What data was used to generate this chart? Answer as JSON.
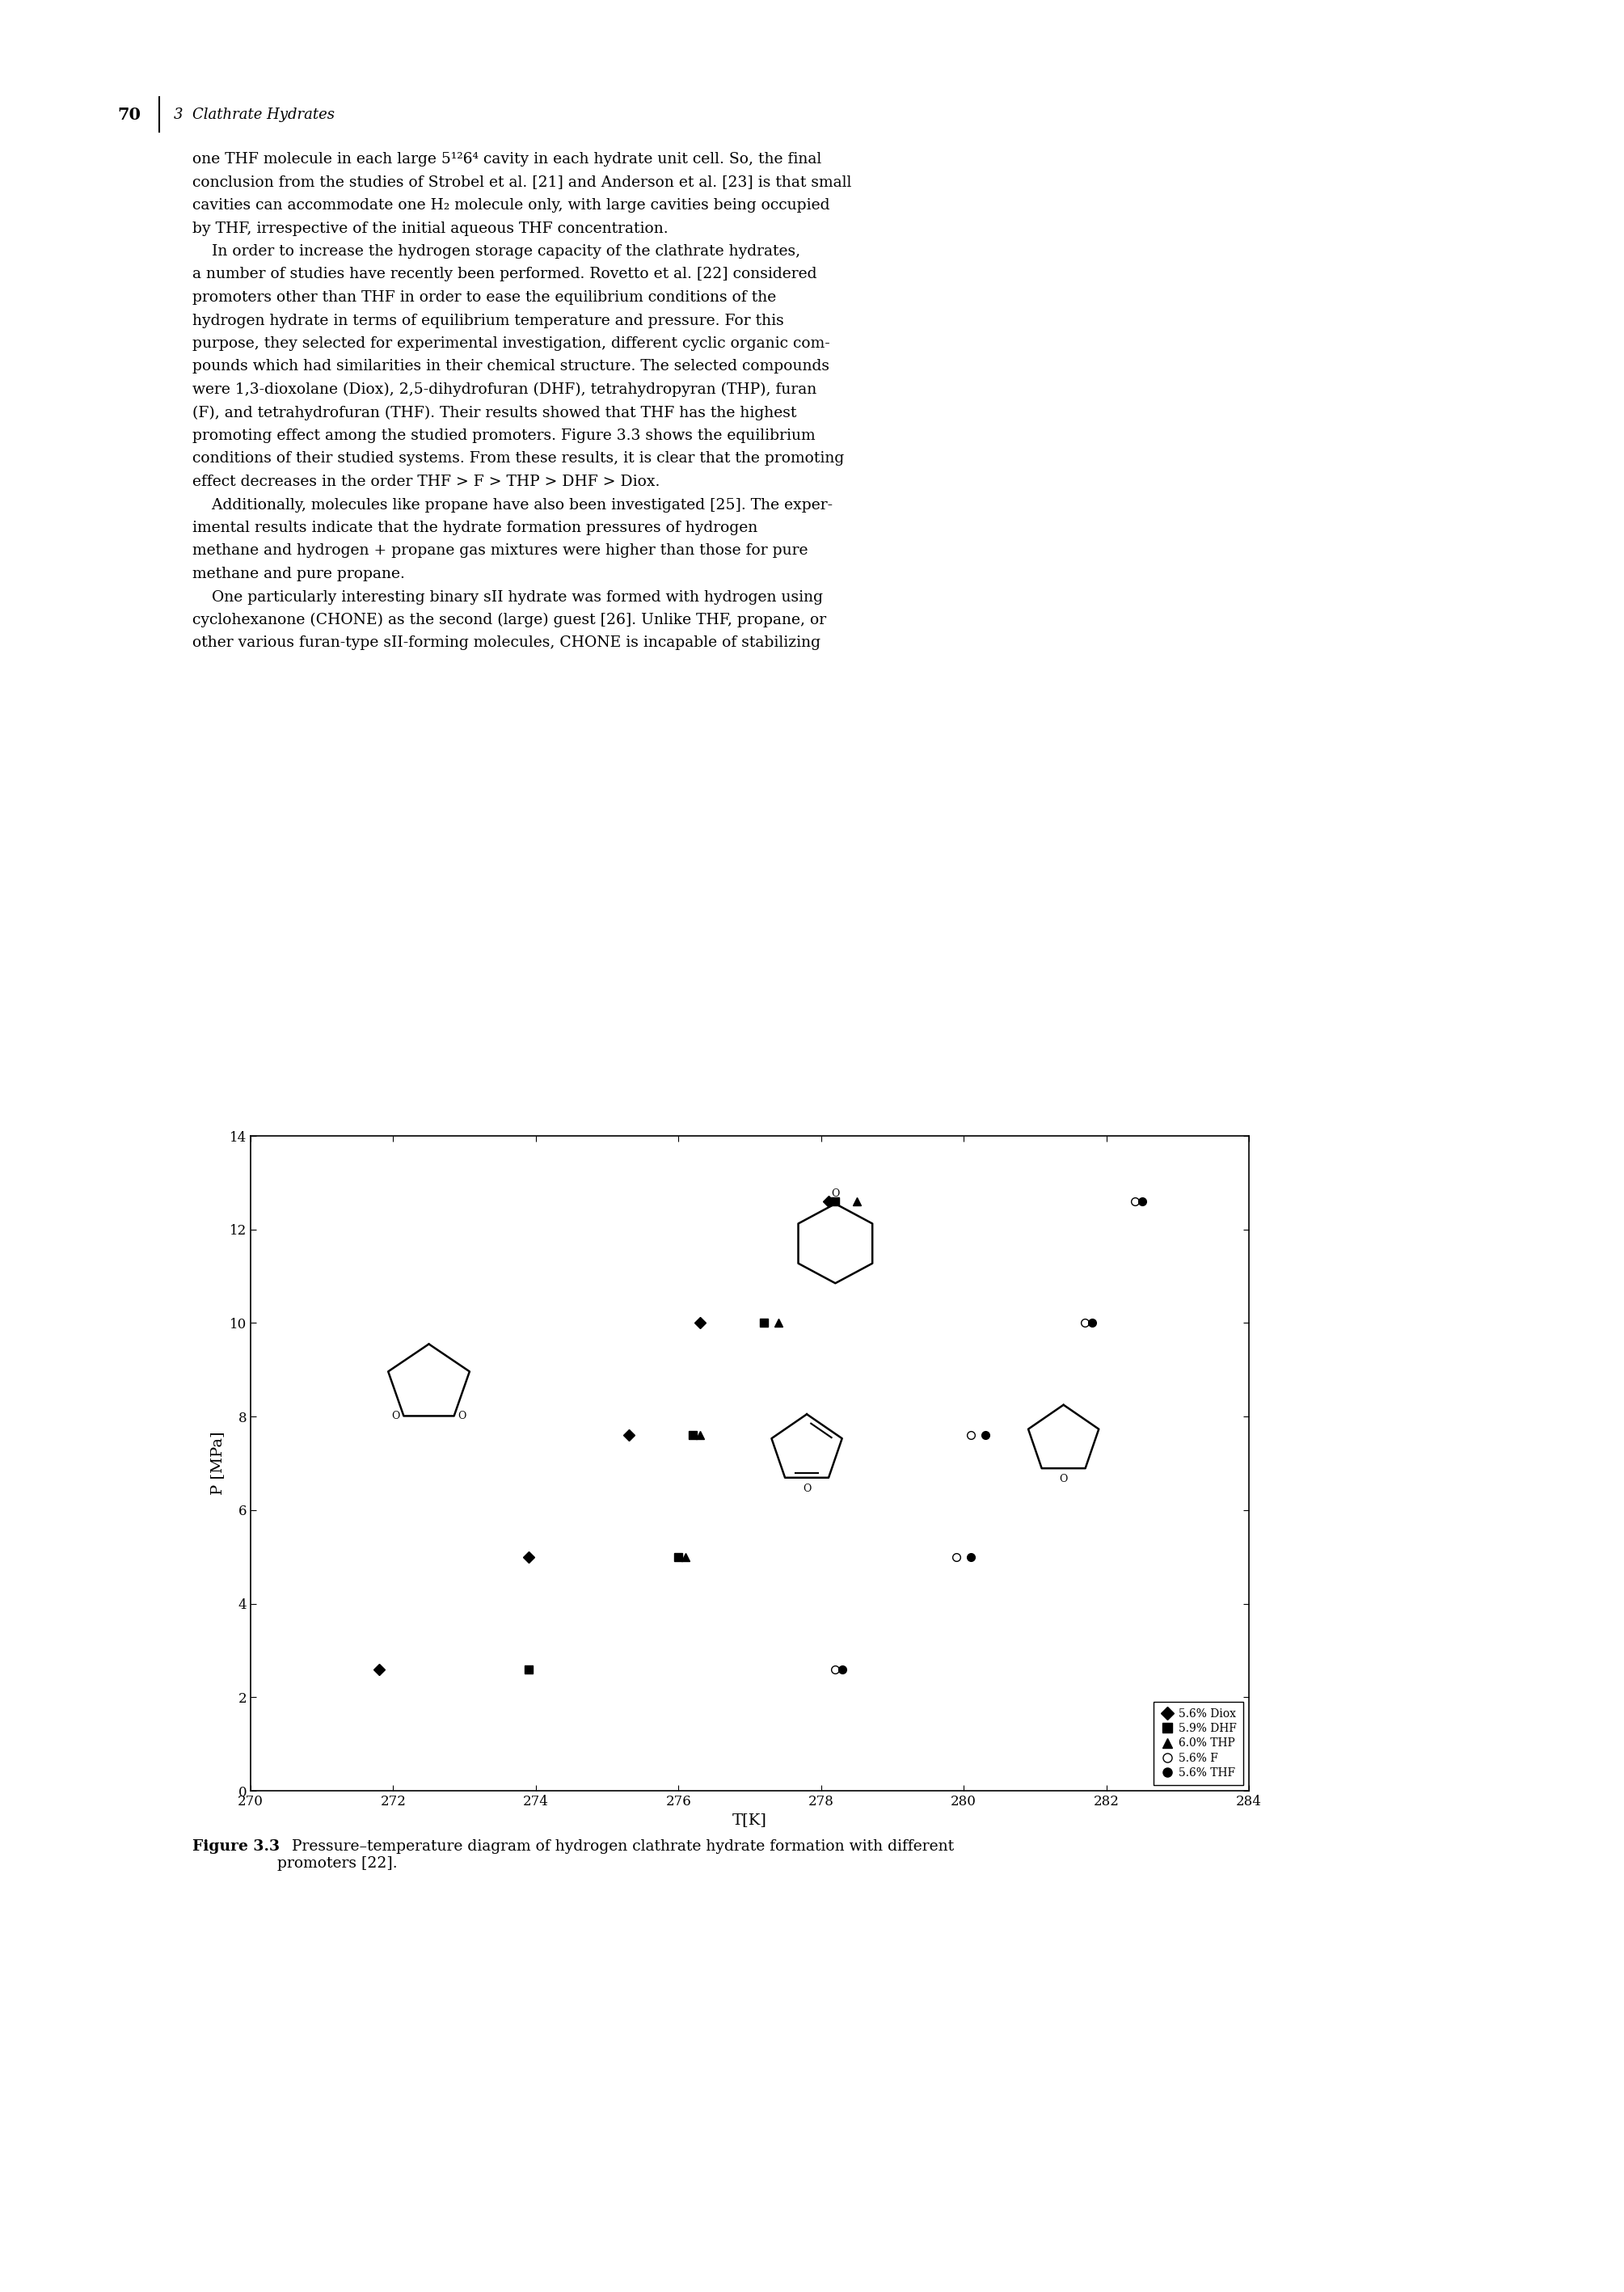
{
  "page_number": "70",
  "chapter": "3  Clathrate Hydrates",
  "body_lines": [
    "one THF molecule in each large 5¹²6⁴ cavity in each hydrate unit cell. So, the final",
    "conclusion from the studies of Strobel et al. [21] and Anderson et al. [23] is that small",
    "cavities can accommodate one H₂ molecule only, with large cavities being occupied",
    "by THF, irrespective of the initial aqueous THF concentration.",
    "    In order to increase the hydrogen storage capacity of the clathrate hydrates,",
    "a number of studies have recently been performed. Rovetto et al. [22] considered",
    "promoters other than THF in order to ease the equilibrium conditions of the",
    "hydrogen hydrate in terms of equilibrium temperature and pressure. For this",
    "purpose, they selected for experimental investigation, different cyclic organic com-",
    "pounds which had similarities in their chemical structure. The selected compounds",
    "were 1,3-dioxolane (Diox), 2,5-dihydrofuran (DHF), tetrahydropyran (THP), furan",
    "(F), and tetrahydrofuran (THF). Their results showed that THF has the highest",
    "promoting effect among the studied promoters. Figure 3.3 shows the equilibrium",
    "conditions of their studied systems. From these results, it is clear that the promoting",
    "effect decreases in the order THF > F > THP > DHF > Diox.",
    "    Additionally, molecules like propane have also been investigated [25]. The exper-",
    "imental results indicate that the hydrate formation pressures of hydrogen",
    "methane and hydrogen + propane gas mixtures were higher than those for pure",
    "methane and pure propane.",
    "    One particularly interesting binary sII hydrate was formed with hydrogen using",
    "cyclohexanone (CHONE) as the second (large) guest [26]. Unlike THF, propane, or",
    "other various furan-type sII-forming molecules, CHONE is incapable of stabilizing"
  ],
  "xlabel": "T[K]",
  "ylabel": "P [MPa]",
  "xlim": [
    270,
    284
  ],
  "ylim": [
    0,
    14
  ],
  "xticks": [
    270,
    272,
    274,
    276,
    278,
    280,
    282,
    284
  ],
  "yticks": [
    0,
    2,
    4,
    6,
    8,
    10,
    12,
    14
  ],
  "diox_T": [
    271.8,
    273.9,
    275.3,
    276.3,
    278.1
  ],
  "diox_P": [
    2.6,
    5.0,
    7.6,
    10.0,
    12.6
  ],
  "dhf_T": [
    273.9,
    276.0,
    276.2,
    277.2,
    278.2
  ],
  "dhf_P": [
    2.6,
    5.0,
    7.6,
    10.0,
    12.6
  ],
  "thp_T": [
    276.1,
    276.3,
    277.4,
    278.5
  ],
  "thp_P": [
    5.0,
    7.6,
    10.0,
    12.6
  ],
  "f_T": [
    278.2,
    279.9,
    280.1,
    281.7,
    282.4
  ],
  "f_P": [
    2.6,
    5.0,
    7.6,
    10.0,
    12.6
  ],
  "thf_T": [
    278.3,
    280.1,
    280.3,
    281.8,
    282.5
  ],
  "thf_P": [
    2.6,
    5.0,
    7.6,
    10.0,
    12.6
  ],
  "fig_caption_bold": "Figure 3.3",
  "fig_caption_rest": "   Pressure–temperature diagram of hydrogen clathrate hydrate formation with different\npromoters [22].",
  "legend_entries": [
    {
      "label": "5.6% Diox",
      "marker": "D",
      "fc": "black",
      "ec": "black"
    },
    {
      "label": "5.9% DHF",
      "marker": "s",
      "fc": "black",
      "ec": "black"
    },
    {
      "label": "6.0% THP",
      "marker": "^",
      "fc": "black",
      "ec": "black"
    },
    {
      "label": "5.6% F",
      "marker": "o",
      "fc": "white",
      "ec": "black"
    },
    {
      "label": "5.6% THF",
      "marker": "o",
      "fc": "black",
      "ec": "black"
    }
  ]
}
